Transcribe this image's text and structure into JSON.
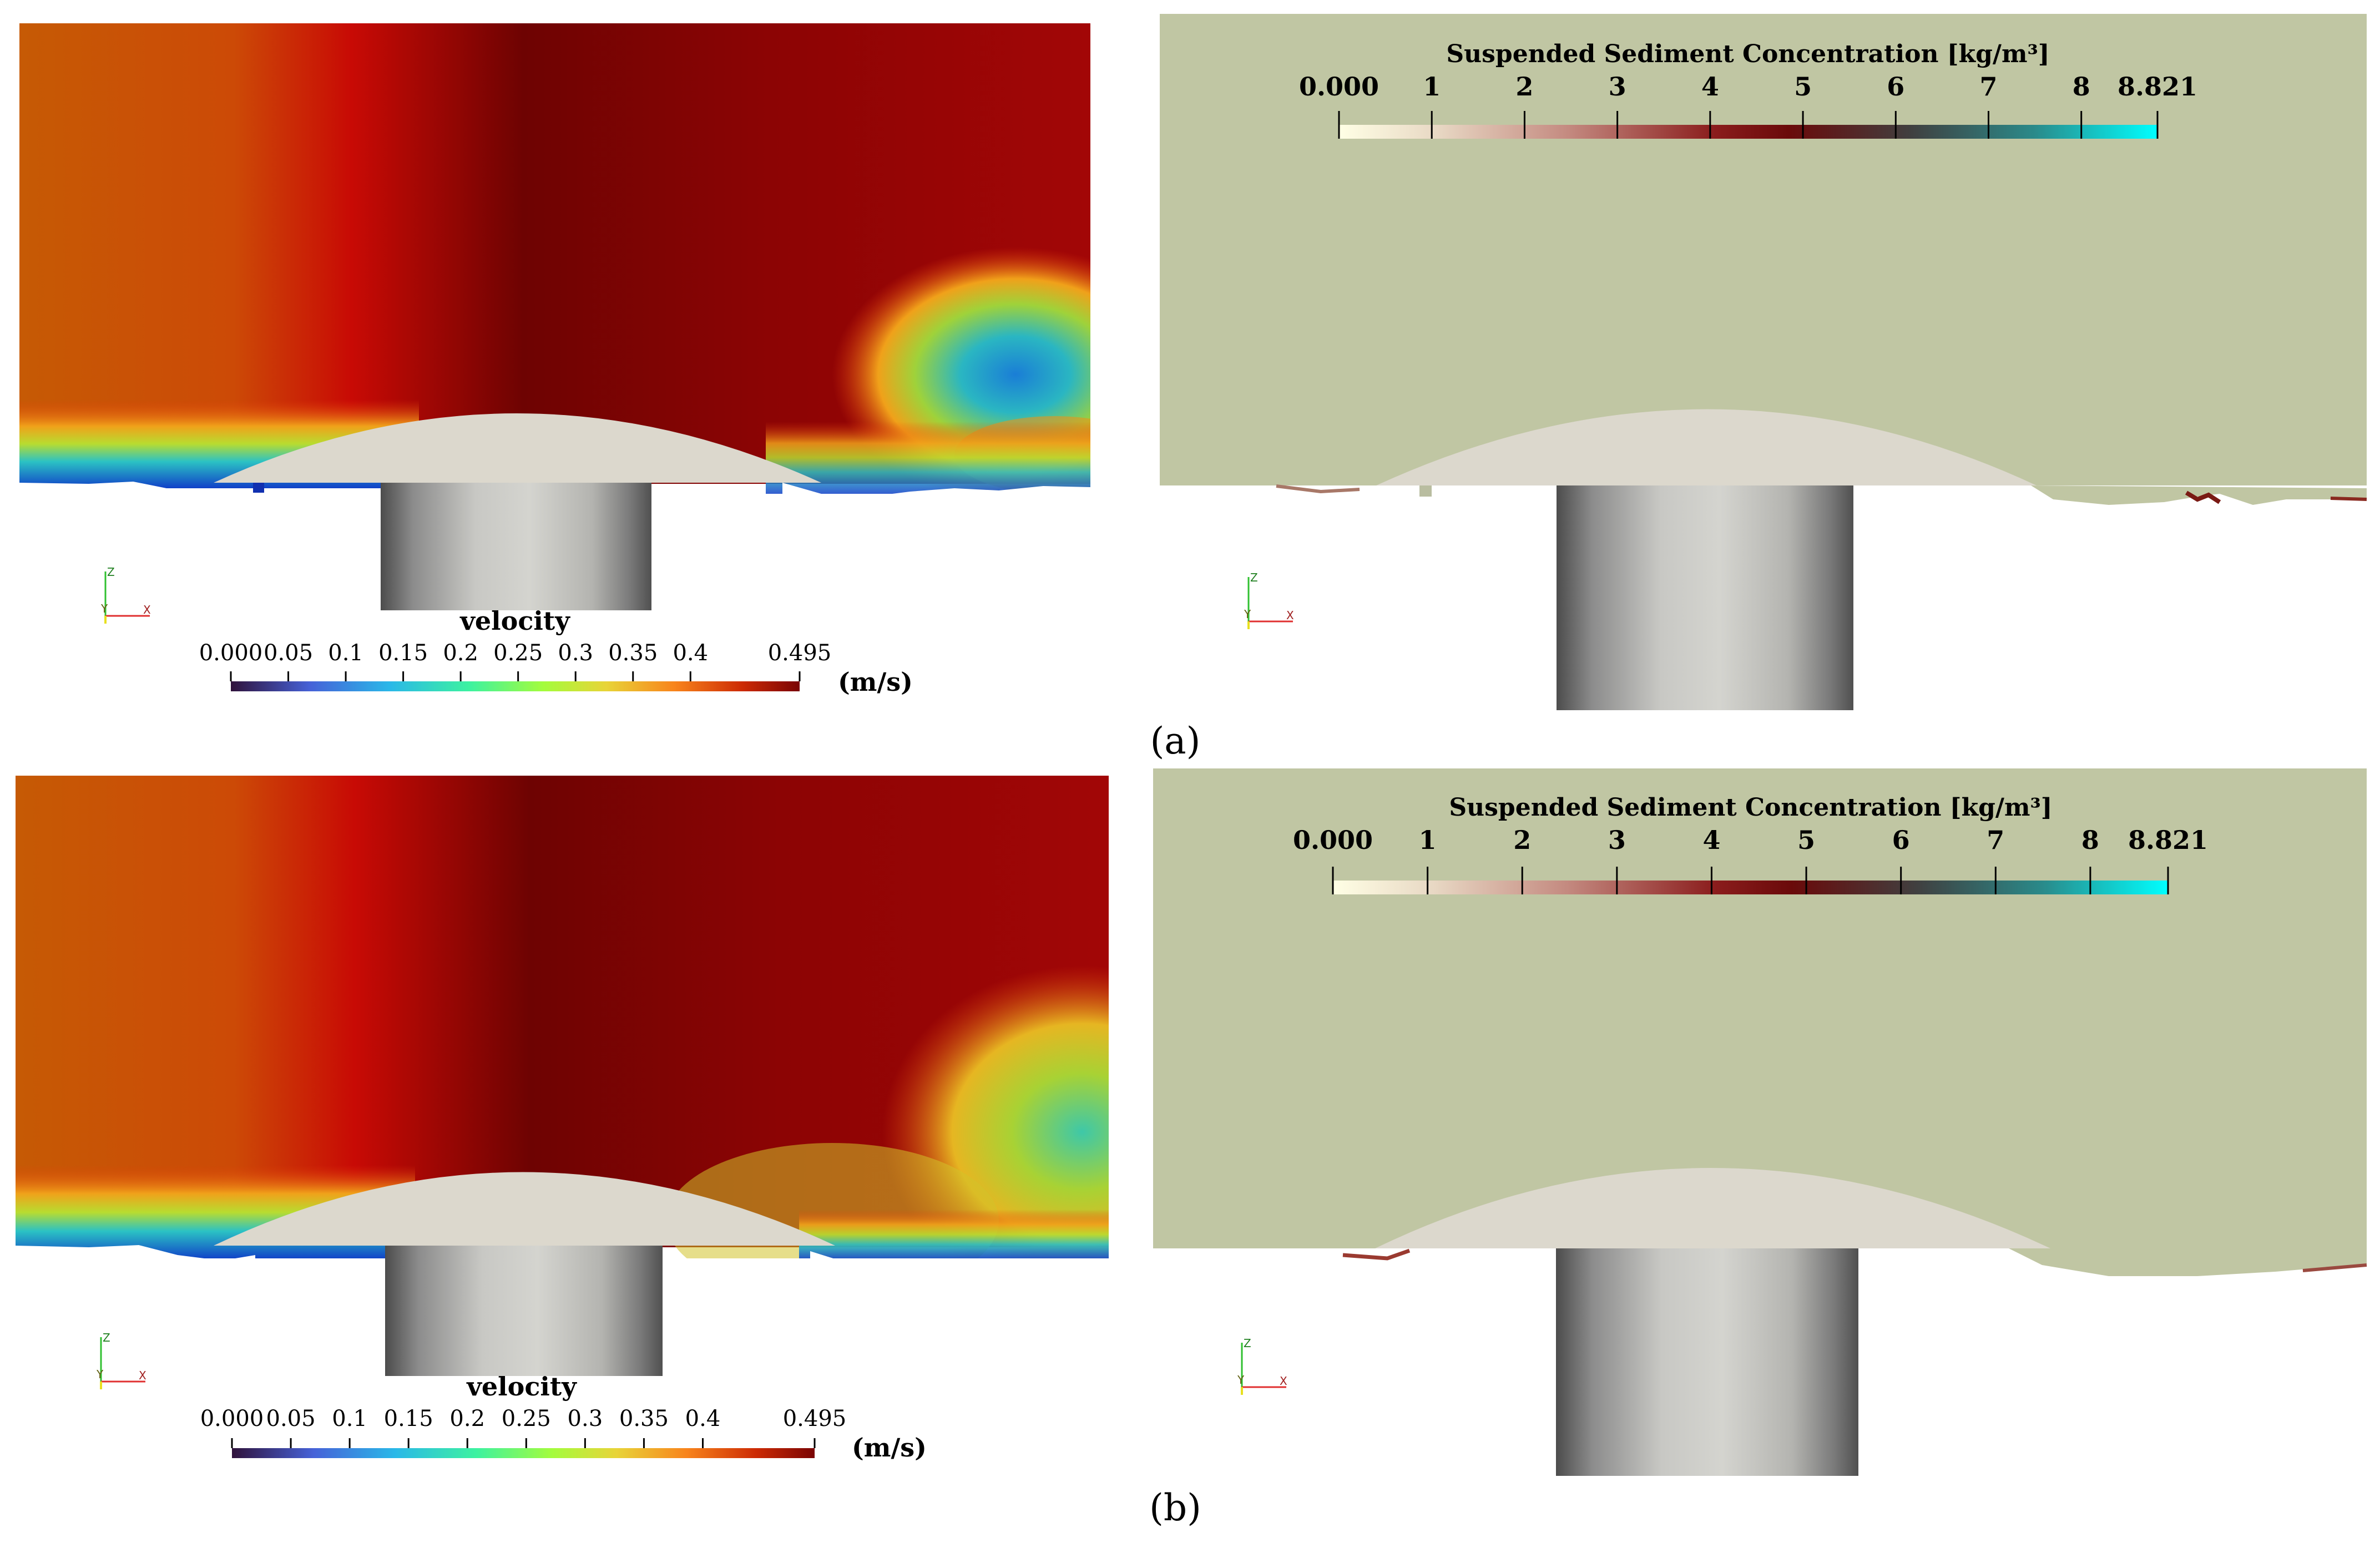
{
  "panels": [
    {
      "label": "(a)",
      "velocity": {
        "title": "velocity",
        "unit": "(m/s)",
        "ticks": [
          "0.000",
          "0.05",
          "0.1",
          "0.15",
          "0.2",
          "0.25",
          "0.3",
          "0.35",
          "0.4",
          "0.495"
        ]
      },
      "sediment": {
        "title": "Suspended Sediment Concentration [kg/m³]",
        "ticks": [
          "0.000",
          "1",
          "2",
          "3",
          "4",
          "5",
          "6",
          "7",
          "8",
          "8.821"
        ]
      },
      "axes": {
        "z": "Z",
        "y": "Y",
        "x": "X"
      }
    },
    {
      "label": "(b)",
      "velocity": {
        "title": "velocity",
        "unit": "(m/s)",
        "ticks": [
          "0.000",
          "0.05",
          "0.1",
          "0.15",
          "0.2",
          "0.25",
          "0.3",
          "0.35",
          "0.4",
          "0.495"
        ]
      },
      "sediment": {
        "title": "Suspended Sediment Concentration [kg/m³]",
        "ticks": [
          "0.000",
          "1",
          "2",
          "3",
          "4",
          "5",
          "6",
          "7",
          "8",
          "8.821"
        ]
      },
      "axes": {
        "z": "Z",
        "y": "Y",
        "x": "X"
      }
    }
  ],
  "colors": {
    "sediment_background": "#c0c6a3",
    "structure": "#dcd8cd",
    "velocity_scale": [
      "#30123b",
      "#3e9bfe",
      "#46f884",
      "#e1dd37",
      "#f05b12",
      "#7a0403"
    ],
    "sediment_scale": [
      "#ffffe5",
      "#d9b7a6",
      "#7a0d10",
      "#3b3b3b",
      "#00ffff"
    ]
  }
}
